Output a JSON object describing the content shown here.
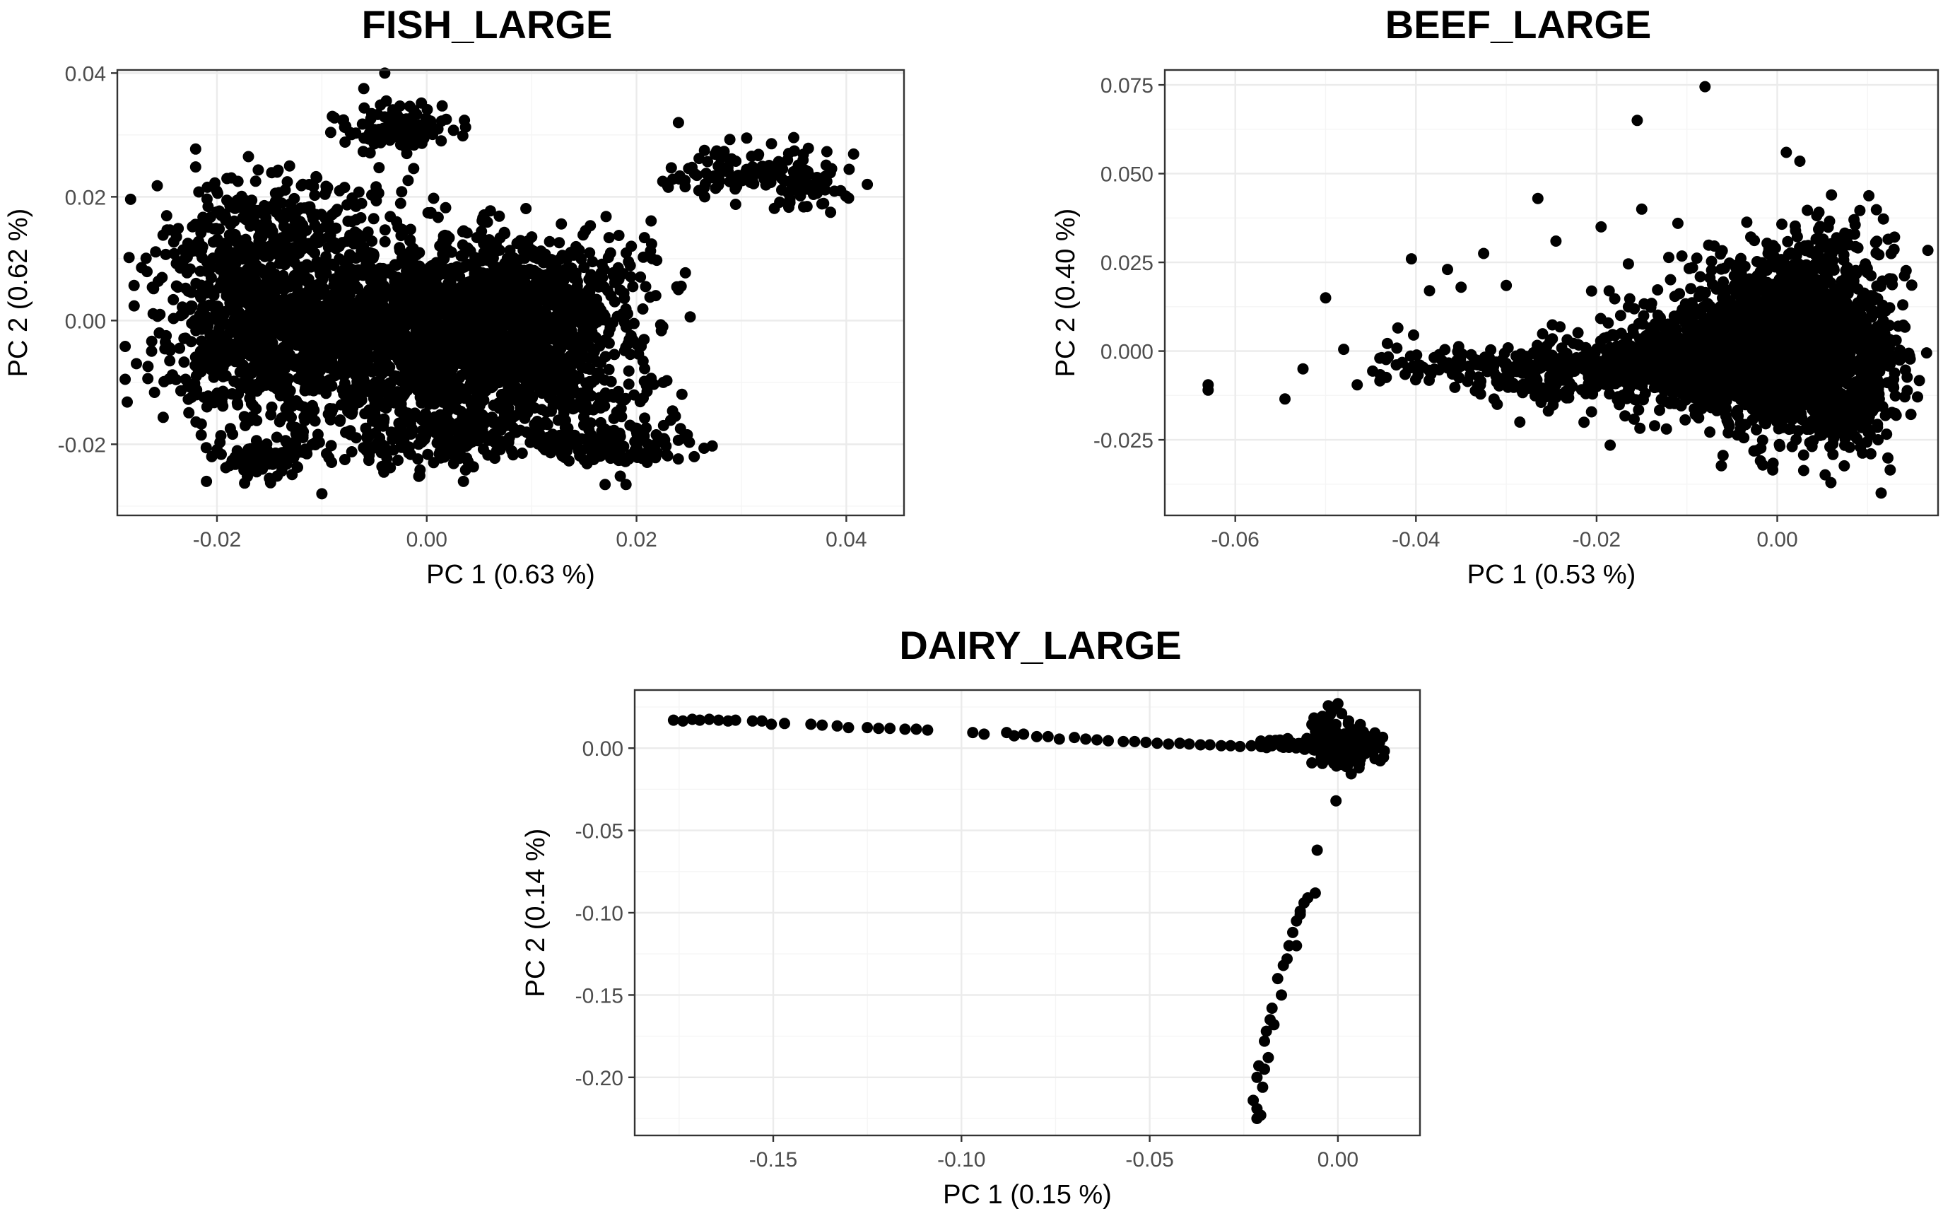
{
  "chart_data": [
    {
      "type": "scatter",
      "title": "FISH_LARGE",
      "xlabel": "PC 1 (0.63 %)",
      "ylabel": "PC 2 (0.62 %)",
      "xlim": [
        -0.0295,
        0.0455
      ],
      "ylim": [
        -0.0315,
        0.0405
      ],
      "xticks": [
        -0.02,
        0.0,
        0.02,
        0.04
      ],
      "xtick_labels": [
        "-0.02",
        "0.00",
        "0.02",
        "0.04"
      ],
      "yticks": [
        -0.02,
        0.0,
        0.02,
        0.04
      ],
      "ytick_labels": [
        "-0.02",
        "0.00",
        "0.02",
        "0.04"
      ],
      "grid": true,
      "point_color": "#000000",
      "clusters": [
        {
          "cx": -0.003,
          "cy": -0.001,
          "sx": 0.0085,
          "sy": 0.0072,
          "n": 1500
        },
        {
          "cx": 0.007,
          "cy": -0.003,
          "sx": 0.0055,
          "sy": 0.006,
          "n": 650
        },
        {
          "cx": -0.016,
          "cy": -0.002,
          "sx": 0.0045,
          "sy": 0.008,
          "n": 420
        },
        {
          "cx": 0.013,
          "cy": 0.006,
          "sx": 0.0045,
          "sy": 0.0045,
          "n": 220
        },
        {
          "cx": 0.017,
          "cy": -0.02,
          "sx": 0.0035,
          "sy": 0.0015,
          "n": 130
        },
        {
          "cx": -0.015,
          "cy": -0.022,
          "sx": 0.003,
          "sy": 0.0015,
          "n": 90
        },
        {
          "cx": -0.003,
          "cy": 0.031,
          "sx": 0.003,
          "sy": 0.0018,
          "n": 110
        },
        {
          "cx": 0.03,
          "cy": 0.024,
          "sx": 0.0035,
          "sy": 0.002,
          "n": 90
        },
        {
          "cx": 0.036,
          "cy": 0.022,
          "sx": 0.0025,
          "sy": 0.0018,
          "n": 60
        },
        {
          "cx": -0.012,
          "cy": 0.016,
          "sx": 0.005,
          "sy": 0.004,
          "n": 180
        },
        {
          "cx": -0.019,
          "cy": 0.01,
          "sx": 0.0035,
          "sy": 0.006,
          "n": 160
        },
        {
          "cx": 0.001,
          "cy": -0.018,
          "sx": 0.006,
          "sy": 0.003,
          "n": 220
        },
        {
          "cx": 0.011,
          "cy": -0.012,
          "sx": 0.006,
          "sy": 0.004,
          "n": 180
        }
      ],
      "points": [
        [
          -0.0255,
          -0.002
        ],
        [
          -0.0245,
          -0.0065
        ],
        [
          -0.023,
          -0.0095
        ],
        [
          -0.022,
          0.006
        ],
        [
          -0.0215,
          -0.0185
        ],
        [
          -0.021,
          -0.026
        ],
        [
          -0.018,
          0.0225
        ],
        [
          -0.017,
          0.0265
        ],
        [
          -0.015,
          -0.0255
        ],
        [
          -0.01,
          -0.028
        ],
        [
          -0.004,
          0.04
        ],
        [
          -0.006,
          0.0375
        ],
        [
          -0.009,
          0.033
        ],
        [
          0.0035,
          -0.026
        ],
        [
          0.017,
          -0.0265
        ],
        [
          0.019,
          -0.0265
        ],
        [
          0.0245,
          -0.019
        ],
        [
          0.0255,
          -0.022
        ],
        [
          0.024,
          0.032
        ],
        [
          0.0225,
          0.0225
        ],
        [
          0.0265,
          0.02
        ],
        [
          0.0295,
          0.0225
        ],
        [
          0.0385,
          0.0175
        ],
        [
          0.042,
          0.022
        ],
        [
          0.0305,
          0.0295
        ],
        [
          0.0345,
          0.027
        ],
        [
          0.0195,
          0.012
        ],
        [
          0.0225,
          -0.001
        ],
        [
          0.024,
          0.005
        ],
        [
          0.0215,
          0.01
        ],
        [
          -0.0235,
          0.0085
        ],
        [
          -0.0205,
          -0.022
        ]
      ]
    },
    {
      "type": "scatter",
      "title": "BEEF_LARGE",
      "xlabel": "PC 1 (0.53 %)",
      "ylabel": "PC 2 (0.40 %)",
      "xlim": [
        -0.0678,
        0.0178
      ],
      "ylim": [
        -0.0463,
        0.0792
      ],
      "xticks": [
        -0.06,
        -0.04,
        -0.02,
        0.0
      ],
      "xtick_labels": [
        "-0.06",
        "-0.04",
        "-0.02",
        "0.00"
      ],
      "yticks": [
        -0.025,
        0.0,
        0.025,
        0.05,
        0.075
      ],
      "ytick_labels": [
        "-0.025",
        "0.000",
        "0.025",
        "0.050",
        "0.075"
      ],
      "grid": true,
      "point_color": "#000000",
      "clusters": [
        {
          "cx": 0.002,
          "cy": 0.0,
          "sx": 0.005,
          "sy": 0.011,
          "n": 1600
        },
        {
          "cx": -0.004,
          "cy": -0.003,
          "sx": 0.006,
          "sy": 0.008,
          "n": 650
        },
        {
          "cx": -0.013,
          "cy": -0.004,
          "sx": 0.006,
          "sy": 0.006,
          "n": 350
        },
        {
          "cx": -0.026,
          "cy": -0.006,
          "sx": 0.005,
          "sy": 0.004,
          "n": 180
        },
        {
          "cx": -0.038,
          "cy": -0.004,
          "sx": 0.004,
          "sy": 0.003,
          "n": 50
        },
        {
          "cx": 0.005,
          "cy": 0.02,
          "sx": 0.004,
          "sy": 0.009,
          "n": 180
        },
        {
          "cx": 0.008,
          "cy": -0.018,
          "sx": 0.0025,
          "sy": 0.006,
          "n": 140
        },
        {
          "cx": -0.006,
          "cy": 0.015,
          "sx": 0.006,
          "sy": 0.008,
          "n": 90
        }
      ],
      "points": [
        [
          -0.008,
          0.0745
        ],
        [
          -0.0155,
          0.065
        ],
        [
          -0.063,
          -0.0095
        ],
        [
          -0.063,
          -0.011
        ],
        [
          -0.0545,
          -0.0135
        ],
        [
          -0.05,
          0.015
        ],
        [
          -0.0405,
          0.026
        ],
        [
          -0.0385,
          0.017
        ],
        [
          -0.0365,
          0.023
        ],
        [
          -0.0325,
          0.0275
        ],
        [
          -0.03,
          0.0185
        ],
        [
          -0.0265,
          0.043
        ],
        [
          -0.0285,
          -0.02
        ],
        [
          -0.0245,
          0.031
        ],
        [
          0.001,
          0.056
        ],
        [
          0.0025,
          0.0535
        ],
        [
          0.0115,
          -0.04
        ],
        [
          0.0125,
          -0.0335
        ],
        [
          -0.0005,
          -0.0335
        ],
        [
          -0.0185,
          -0.0265
        ],
        [
          -0.0465,
          -0.0095
        ],
        [
          -0.048,
          0.0005
        ],
        [
          -0.042,
          0.0065
        ],
        [
          -0.035,
          0.018
        ],
        [
          -0.0195,
          0.035
        ],
        [
          -0.015,
          0.04
        ],
        [
          -0.011,
          0.036
        ],
        [
          0.0085,
          0.037
        ],
        [
          0.006,
          0.044
        ],
        [
          -0.0525,
          -0.005
        ],
        [
          -0.044,
          -0.002
        ],
        [
          -0.031,
          -0.015
        ]
      ]
    },
    {
      "type": "scatter",
      "title": "DAIRY_LARGE",
      "xlabel": "PC 1 (0.15 %)",
      "ylabel": "PC 2 (0.14 %)",
      "xlim": [
        -0.1868,
        0.0218
      ],
      "ylim": [
        -0.2353,
        0.0353
      ],
      "xticks": [
        -0.15,
        -0.1,
        -0.05,
        0.0
      ],
      "xtick_labels": [
        "-0.15",
        "-0.10",
        "-0.05",
        "0.00"
      ],
      "yticks": [
        -0.2,
        -0.15,
        -0.1,
        -0.05,
        0.0
      ],
      "ytick_labels": [
        "-0.20",
        "-0.15",
        "-0.10",
        "-0.05",
        "0.00"
      ],
      "grid": true,
      "point_color": "#000000",
      "clusters": [
        {
          "cx": 0.002,
          "cy": 0.0,
          "sx": 0.0035,
          "sy": 0.0055,
          "n": 260
        },
        {
          "cx": -0.004,
          "cy": 0.011,
          "sx": 0.002,
          "sy": 0.006,
          "n": 40
        },
        {
          "cx": -0.01,
          "cy": 0.002,
          "sx": 0.005,
          "sy": 0.002,
          "n": 60
        }
      ],
      "points": [
        [
          -0.1765,
          0.017
        ],
        [
          -0.174,
          0.0165
        ],
        [
          -0.1715,
          0.0175
        ],
        [
          -0.1695,
          0.017
        ],
        [
          -0.167,
          0.0175
        ],
        [
          -0.1645,
          0.017
        ],
        [
          -0.162,
          0.0165
        ],
        [
          -0.16,
          0.017
        ],
        [
          -0.1555,
          0.0165
        ],
        [
          -0.153,
          0.0165
        ],
        [
          -0.1505,
          0.0145
        ],
        [
          -0.147,
          0.015
        ],
        [
          -0.14,
          0.0145
        ],
        [
          -0.137,
          0.014
        ],
        [
          -0.133,
          0.0135
        ],
        [
          -0.13,
          0.0125
        ],
        [
          -0.125,
          0.0125
        ],
        [
          -0.122,
          0.012
        ],
        [
          -0.119,
          0.012
        ],
        [
          -0.115,
          0.0115
        ],
        [
          -0.112,
          0.0115
        ],
        [
          -0.109,
          0.011
        ],
        [
          -0.097,
          0.0095
        ],
        [
          -0.094,
          0.0085
        ],
        [
          -0.088,
          0.0095
        ],
        [
          -0.086,
          0.0075
        ],
        [
          -0.0835,
          0.0085
        ],
        [
          -0.08,
          0.007
        ],
        [
          -0.077,
          0.007
        ],
        [
          -0.074,
          0.0055
        ],
        [
          -0.07,
          0.0065
        ],
        [
          -0.067,
          0.0055
        ],
        [
          -0.064,
          0.005
        ],
        [
          -0.061,
          0.0045
        ],
        [
          -0.057,
          0.004
        ],
        [
          -0.054,
          0.004
        ],
        [
          -0.051,
          0.0035
        ],
        [
          -0.048,
          0.003
        ],
        [
          -0.045,
          0.0025
        ],
        [
          -0.042,
          0.003
        ],
        [
          -0.0395,
          0.0025
        ],
        [
          -0.0365,
          0.002
        ],
        [
          -0.034,
          0.002
        ],
        [
          -0.031,
          0.0015
        ],
        [
          -0.0285,
          0.0015
        ],
        [
          -0.026,
          0.001
        ],
        [
          -0.023,
          0.0015
        ],
        [
          -0.02,
          0.001
        ],
        [
          -0.0175,
          0.0015
        ],
        [
          -0.015,
          0.001
        ],
        [
          -0.013,
          0.0005
        ],
        [
          -0.0005,
          -0.032
        ],
        [
          -0.0055,
          -0.062
        ],
        [
          -0.006,
          -0.088
        ],
        [
          -0.008,
          -0.091
        ],
        [
          -0.009,
          -0.094
        ],
        [
          -0.01,
          -0.099
        ],
        [
          -0.011,
          -0.105
        ],
        [
          -0.012,
          -0.112
        ],
        [
          -0.013,
          -0.12
        ],
        [
          -0.0135,
          -0.128
        ],
        [
          -0.0145,
          -0.132
        ],
        [
          -0.016,
          -0.14
        ],
        [
          -0.0175,
          -0.158
        ],
        [
          -0.018,
          -0.165
        ],
        [
          -0.019,
          -0.172
        ],
        [
          -0.0195,
          -0.178
        ],
        [
          -0.0185,
          -0.188
        ],
        [
          -0.0195,
          -0.195
        ],
        [
          -0.021,
          -0.193
        ],
        [
          -0.0215,
          -0.2
        ],
        [
          -0.02,
          -0.206
        ],
        [
          -0.0225,
          -0.214
        ],
        [
          -0.0215,
          -0.219
        ],
        [
          -0.0205,
          -0.223
        ],
        [
          -0.0215,
          -0.225
        ],
        [
          -0.01,
          -0.101
        ],
        [
          -0.015,
          -0.15
        ],
        [
          -0.017,
          -0.168
        ],
        [
          -0.011,
          -0.12
        ],
        [
          0.0,
          0.027
        ],
        [
          -0.001,
          0.024
        ],
        [
          0.001,
          0.021
        ]
      ]
    }
  ]
}
